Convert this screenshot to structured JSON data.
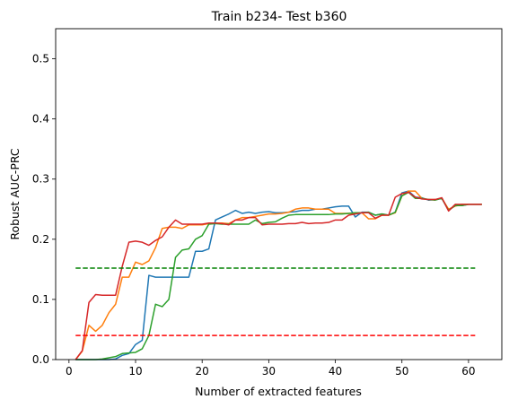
{
  "chart_data": {
    "type": "line",
    "title": "Train b234- Test b360",
    "xlabel": "Number of extracted features",
    "ylabel": "Robust AUC-PRC",
    "xlim": [
      -2,
      65
    ],
    "ylim": [
      0,
      0.55
    ],
    "xticks": [
      0,
      10,
      20,
      30,
      40,
      50,
      60
    ],
    "yticks": [
      0.0,
      0.1,
      0.2,
      0.3,
      0.4,
      0.5
    ],
    "grid": false,
    "series": [
      {
        "color": "#1f77b4",
        "x": [
          1,
          2,
          3,
          4,
          5,
          6,
          7,
          8,
          9,
          10,
          11,
          12,
          13,
          14,
          15,
          16,
          17,
          18,
          19,
          20,
          21,
          22,
          23,
          24,
          25,
          26,
          27,
          28,
          29,
          30,
          31,
          32,
          33,
          34,
          35,
          36,
          37,
          38,
          39,
          40,
          41,
          42,
          43,
          44,
          45,
          46,
          47,
          48,
          49,
          50,
          51,
          52,
          53,
          54,
          55,
          56,
          57,
          58,
          59,
          60,
          61,
          62
        ],
        "y": [
          0.0,
          0.0,
          0.0,
          0.0,
          0.0,
          0.0,
          0.001,
          0.007,
          0.01,
          0.025,
          0.032,
          0.14,
          0.137,
          0.137,
          0.137,
          0.137,
          0.137,
          0.137,
          0.18,
          0.18,
          0.184,
          0.232,
          0.237,
          0.242,
          0.248,
          0.243,
          0.245,
          0.243,
          0.245,
          0.246,
          0.244,
          0.244,
          0.245,
          0.246,
          0.248,
          0.248,
          0.25,
          0.25,
          0.252,
          0.254,
          0.255,
          0.255,
          0.237,
          0.245,
          0.245,
          0.24,
          0.242,
          0.24,
          0.245,
          0.277,
          0.28,
          0.27,
          0.269,
          0.265,
          0.266,
          0.268,
          0.248,
          0.256,
          0.256,
          0.258,
          0.258,
          0.258
        ]
      },
      {
        "color": "#ff7f0e",
        "x": [
          1,
          2,
          3,
          4,
          5,
          6,
          7,
          8,
          9,
          10,
          11,
          12,
          13,
          14,
          15,
          16,
          17,
          18,
          19,
          20,
          21,
          22,
          23,
          24,
          25,
          26,
          27,
          28,
          29,
          30,
          31,
          32,
          33,
          34,
          35,
          36,
          37,
          38,
          39,
          40,
          41,
          42,
          43,
          44,
          45,
          46,
          47,
          48,
          49,
          50,
          51,
          52,
          53,
          54,
          55,
          56,
          57,
          58,
          59,
          60,
          61,
          62
        ],
        "y": [
          0.0,
          0.014,
          0.057,
          0.047,
          0.057,
          0.078,
          0.092,
          0.137,
          0.137,
          0.162,
          0.158,
          0.164,
          0.186,
          0.218,
          0.22,
          0.22,
          0.218,
          0.224,
          0.224,
          0.224,
          0.226,
          0.227,
          0.227,
          0.226,
          0.232,
          0.236,
          0.236,
          0.238,
          0.24,
          0.242,
          0.242,
          0.243,
          0.245,
          0.25,
          0.252,
          0.252,
          0.25,
          0.25,
          0.25,
          0.243,
          0.243,
          0.243,
          0.243,
          0.244,
          0.234,
          0.234,
          0.24,
          0.24,
          0.244,
          0.272,
          0.28,
          0.28,
          0.268,
          0.266,
          0.266,
          0.268,
          0.25,
          0.255,
          0.258,
          0.258,
          0.258,
          0.258
        ]
      },
      {
        "color": "#2ca02c",
        "x": [
          1,
          2,
          3,
          4,
          5,
          6,
          7,
          8,
          9,
          10,
          11,
          12,
          13,
          14,
          15,
          16,
          17,
          18,
          19,
          20,
          21,
          22,
          23,
          24,
          25,
          26,
          27,
          28,
          29,
          30,
          31,
          32,
          33,
          34,
          35,
          36,
          37,
          38,
          39,
          40,
          41,
          42,
          43,
          44,
          45,
          46,
          47,
          48,
          49,
          50,
          51,
          52,
          53,
          54,
          55,
          56,
          57,
          58,
          59,
          60,
          61,
          62
        ],
        "y": [
          0.0,
          0.0,
          0.0,
          0.0,
          0.001,
          0.003,
          0.005,
          0.01,
          0.011,
          0.012,
          0.018,
          0.04,
          0.092,
          0.088,
          0.1,
          0.17,
          0.182,
          0.184,
          0.2,
          0.206,
          0.225,
          0.226,
          0.225,
          0.225,
          0.225,
          0.225,
          0.225,
          0.232,
          0.226,
          0.228,
          0.229,
          0.235,
          0.24,
          0.241,
          0.241,
          0.241,
          0.241,
          0.241,
          0.241,
          0.242,
          0.242,
          0.243,
          0.244,
          0.244,
          0.245,
          0.24,
          0.242,
          0.24,
          0.245,
          0.272,
          0.278,
          0.268,
          0.268,
          0.266,
          0.265,
          0.268,
          0.248,
          0.256,
          0.256,
          0.258,
          0.258,
          0.258
        ]
      },
      {
        "color": "#d62728",
        "x": [
          1,
          2,
          3,
          4,
          5,
          6,
          7,
          8,
          9,
          10,
          11,
          12,
          13,
          14,
          15,
          16,
          17,
          18,
          19,
          20,
          21,
          22,
          23,
          24,
          25,
          26,
          27,
          28,
          29,
          30,
          31,
          32,
          33,
          34,
          35,
          36,
          37,
          38,
          39,
          40,
          41,
          42,
          43,
          44,
          45,
          46,
          47,
          48,
          49,
          50,
          51,
          52,
          53,
          54,
          55,
          56,
          57,
          58,
          59,
          60,
          61,
          62
        ],
        "y": [
          0.0,
          0.015,
          0.095,
          0.108,
          0.107,
          0.107,
          0.107,
          0.155,
          0.195,
          0.197,
          0.195,
          0.19,
          0.198,
          0.204,
          0.22,
          0.232,
          0.225,
          0.225,
          0.225,
          0.225,
          0.227,
          0.227,
          0.226,
          0.224,
          0.232,
          0.232,
          0.236,
          0.236,
          0.224,
          0.225,
          0.225,
          0.225,
          0.226,
          0.226,
          0.228,
          0.226,
          0.227,
          0.227,
          0.228,
          0.232,
          0.232,
          0.24,
          0.242,
          0.244,
          0.244,
          0.235,
          0.24,
          0.24,
          0.27,
          0.276,
          0.278,
          0.27,
          0.267,
          0.266,
          0.266,
          0.269,
          0.247,
          0.258,
          0.258,
          0.258,
          0.258,
          0.258
        ]
      },
      {
        "color": "#008000",
        "dashed": true,
        "x": [
          1,
          61
        ],
        "y": [
          0.152,
          0.152
        ]
      },
      {
        "color": "#ff0000",
        "dashed": true,
        "x": [
          1,
          61
        ],
        "y": [
          0.04,
          0.04
        ]
      }
    ]
  }
}
